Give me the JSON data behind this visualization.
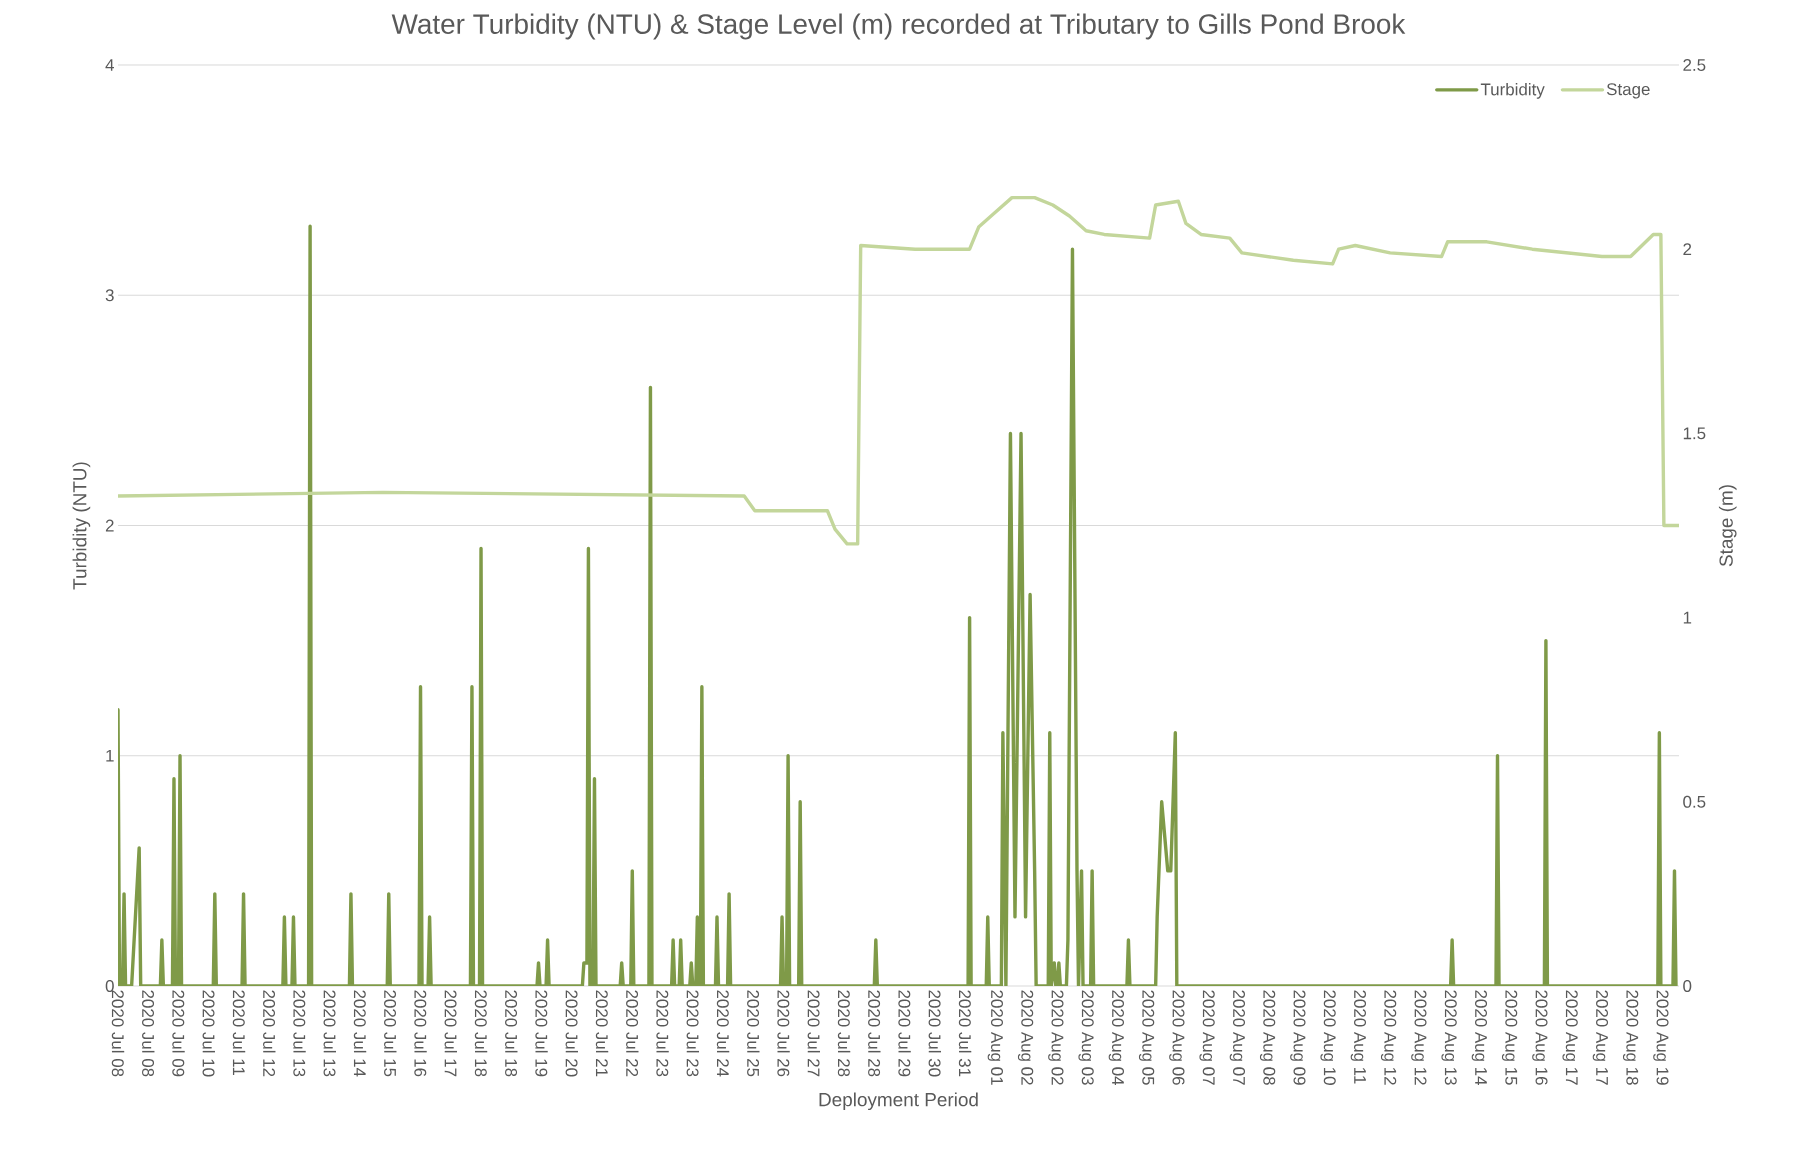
{
  "chart_data": {
    "type": "line",
    "title": "Water Turbidity (NTU) & Stage Level (m) recorded at Tributary to Gills Pond Brook",
    "xlabel": "Deployment Period",
    "ylabel": "Turbidity (NTU)",
    "y2label": "Stage (m)",
    "xlim": [
      "2020-07-08T00:00",
      "2020-08-20T00:00"
    ],
    "xticks": [
      {
        "value": "2020-07-08T00:00",
        "label": "2020 Jul 08"
      },
      {
        "value": "2020-07-08T20:00",
        "label": "2020 Jul 08"
      },
      {
        "value": "2020-07-09T16:00",
        "label": "2020 Jul 09"
      },
      {
        "value": "2020-07-10T12:00",
        "label": "2020 Jul 10"
      },
      {
        "value": "2020-07-11T08:00",
        "label": "2020 Jul 11"
      },
      {
        "value": "2020-07-12T04:00",
        "label": "2020 Jul 12"
      },
      {
        "value": "2020-07-13T00:00",
        "label": "2020 Jul 13"
      },
      {
        "value": "2020-07-13T20:00",
        "label": "2020 Jul 13"
      },
      {
        "value": "2020-07-14T16:00",
        "label": "2020 Jul 14"
      },
      {
        "value": "2020-07-15T12:00",
        "label": "2020 Jul 15"
      },
      {
        "value": "2020-07-16T08:00",
        "label": "2020 Jul 16"
      },
      {
        "value": "2020-07-17T04:00",
        "label": "2020 Jul 17"
      },
      {
        "value": "2020-07-18T00:00",
        "label": "2020 Jul 18"
      },
      {
        "value": "2020-07-18T20:00",
        "label": "2020 Jul 18"
      },
      {
        "value": "2020-07-19T16:00",
        "label": "2020 Jul 19"
      },
      {
        "value": "2020-07-20T12:00",
        "label": "2020 Jul 20"
      },
      {
        "value": "2020-07-21T08:00",
        "label": "2020 Jul 21"
      },
      {
        "value": "2020-07-22T04:00",
        "label": "2020 Jul 22"
      },
      {
        "value": "2020-07-23T00:00",
        "label": "2020 Jul 23"
      },
      {
        "value": "2020-07-23T20:00",
        "label": "2020 Jul 23"
      },
      {
        "value": "2020-07-24T16:00",
        "label": "2020 Jul 24"
      },
      {
        "value": "2020-07-25T12:00",
        "label": "2020 Jul 25"
      },
      {
        "value": "2020-07-26T08:00",
        "label": "2020 Jul 26"
      },
      {
        "value": "2020-07-27T04:00",
        "label": "2020 Jul 27"
      },
      {
        "value": "2020-07-28T00:00",
        "label": "2020 Jul 28"
      },
      {
        "value": "2020-07-28T20:00",
        "label": "2020 Jul 28"
      },
      {
        "value": "2020-07-29T16:00",
        "label": "2020 Jul 29"
      },
      {
        "value": "2020-07-30T12:00",
        "label": "2020 Jul 30"
      },
      {
        "value": "2020-07-31T08:00",
        "label": "2020 Jul 31"
      },
      {
        "value": "2020-08-01T04:00",
        "label": "2020 Aug 01"
      },
      {
        "value": "2020-08-02T00:00",
        "label": "2020 Aug 02"
      },
      {
        "value": "2020-08-02T20:00",
        "label": "2020 Aug 02"
      },
      {
        "value": "2020-08-03T16:00",
        "label": "2020 Aug 03"
      },
      {
        "value": "2020-08-04T12:00",
        "label": "2020 Aug 04"
      },
      {
        "value": "2020-08-05T08:00",
        "label": "2020 Aug 05"
      },
      {
        "value": "2020-08-06T04:00",
        "label": "2020 Aug 06"
      },
      {
        "value": "2020-08-07T00:00",
        "label": "2020 Aug 07"
      },
      {
        "value": "2020-08-07T20:00",
        "label": "2020 Aug 07"
      },
      {
        "value": "2020-08-08T16:00",
        "label": "2020 Aug 08"
      },
      {
        "value": "2020-08-09T12:00",
        "label": "2020 Aug 09"
      },
      {
        "value": "2020-08-10T08:00",
        "label": "2020 Aug 10"
      },
      {
        "value": "2020-08-11T04:00",
        "label": "2020 Aug 11"
      },
      {
        "value": "2020-08-12T00:00",
        "label": "2020 Aug 12"
      },
      {
        "value": "2020-08-12T20:00",
        "label": "2020 Aug 12"
      },
      {
        "value": "2020-08-13T16:00",
        "label": "2020 Aug 13"
      },
      {
        "value": "2020-08-14T12:00",
        "label": "2020 Aug 14"
      },
      {
        "value": "2020-08-15T08:00",
        "label": "2020 Aug 15"
      },
      {
        "value": "2020-08-16T04:00",
        "label": "2020 Aug 16"
      },
      {
        "value": "2020-08-17T00:00",
        "label": "2020 Aug 17"
      },
      {
        "value": "2020-08-17T20:00",
        "label": "2020 Aug 17"
      },
      {
        "value": "2020-08-18T16:00",
        "label": "2020 Aug 18"
      },
      {
        "value": "2020-08-19T12:00",
        "label": "2020 Aug 19"
      }
    ],
    "ylim": [
      0,
      4
    ],
    "yticks": [
      0,
      1,
      2,
      3,
      4
    ],
    "y2lim": [
      0,
      2.5
    ],
    "y2ticks": [
      0,
      0.5,
      1,
      1.5,
      2,
      2.5
    ],
    "grid": "y",
    "legend": "top right",
    "marker": "none",
    "line_style": "solid",
    "series": [
      {
        "name": "Turbidity",
        "color": "#7f9a48",
        "x": [
          "2020-07-08T00:00",
          "2020-07-08T01:00",
          "2020-07-08T03:00",
          "2020-07-08T04:00",
          "2020-07-08T05:00",
          "2020-07-08T09:00",
          "2020-07-08T14:00",
          "2020-07-08T15:00",
          "2020-07-09T04:00",
          "2020-07-09T05:00",
          "2020-07-09T06:00",
          "2020-07-09T12:00",
          "2020-07-09T13:00",
          "2020-07-09T14:00",
          "2020-07-09T16:00",
          "2020-07-09T17:00",
          "2020-07-09T18:00",
          "2020-07-10T15:00",
          "2020-07-10T16:00",
          "2020-07-10T17:00",
          "2020-07-11T10:00",
          "2020-07-11T11:00",
          "2020-07-11T12:00",
          "2020-07-12T13:00",
          "2020-07-12T14:00",
          "2020-07-12T15:00",
          "2020-07-12T19:00",
          "2020-07-12T20:00",
          "2020-07-12T21:00",
          "2020-07-13T06:00",
          "2020-07-13T07:00",
          "2020-07-13T08:00",
          "2020-07-14T09:00",
          "2020-07-14T10:00",
          "2020-07-14T11:00",
          "2020-07-15T10:00",
          "2020-07-15T11:00",
          "2020-07-15T12:00",
          "2020-07-16T07:00",
          "2020-07-16T08:00",
          "2020-07-16T09:00",
          "2020-07-16T13:00",
          "2020-07-16T14:00",
          "2020-07-16T15:00",
          "2020-07-17T17:00",
          "2020-07-17T18:00",
          "2020-07-17T19:00",
          "2020-07-17T23:00",
          "2020-07-18T00:00",
          "2020-07-18T01:00",
          "2020-07-19T13:00",
          "2020-07-19T14:00",
          "2020-07-19T15:00",
          "2020-07-19T19:00",
          "2020-07-19T20:00",
          "2020-07-19T21:00",
          "2020-07-20T19:00",
          "2020-07-20T20:00",
          "2020-07-20T22:00",
          "2020-07-20T23:00",
          "2020-07-21T00:00",
          "2020-07-21T02:00",
          "2020-07-21T03:00",
          "2020-07-21T04:00",
          "2020-07-21T20:00",
          "2020-07-21T21:00",
          "2020-07-21T22:00",
          "2020-07-22T03:00",
          "2020-07-22T04:00",
          "2020-07-22T05:00",
          "2020-07-22T15:00",
          "2020-07-22T16:00",
          "2020-07-22T17:00",
          "2020-07-23T06:00",
          "2020-07-23T07:00",
          "2020-07-23T08:00",
          "2020-07-23T11:00",
          "2020-07-23T12:00",
          "2020-07-23T13:00",
          "2020-07-23T18:00",
          "2020-07-23T19:00",
          "2020-07-23T20:00",
          "2020-07-23T22:00",
          "2020-07-23T23:00",
          "2020-07-24T00:00",
          "2020-07-24T01:00",
          "2020-07-24T02:00",
          "2020-07-24T03:00",
          "2020-07-24T11:00",
          "2020-07-24T12:00",
          "2020-07-24T13:00",
          "2020-07-24T19:00",
          "2020-07-24T20:00",
          "2020-07-24T21:00",
          "2020-07-26T06:00",
          "2020-07-26T07:00",
          "2020-07-26T08:00",
          "2020-07-26T10:00",
          "2020-07-26T11:00",
          "2020-07-26T12:00",
          "2020-07-26T18:00",
          "2020-07-26T19:00",
          "2020-07-26T20:00",
          "2020-07-28T20:00",
          "2020-07-28T21:00",
          "2020-07-28T22:00",
          "2020-07-31T10:00",
          "2020-07-31T11:00",
          "2020-07-31T12:00",
          "2020-07-31T22:00",
          "2020-07-31T23:00",
          "2020-08-01T00:00",
          "2020-08-01T08:00",
          "2020-08-01T09:00",
          "2020-08-01T11:00",
          "2020-08-01T14:00",
          "2020-08-01T17:00",
          "2020-08-01T21:00",
          "2020-08-02T00:00",
          "2020-08-02T03:00",
          "2020-08-02T06:00",
          "2020-08-02T07:00",
          "2020-08-02T15:00",
          "2020-08-02T16:00",
          "2020-08-02T17:00",
          "2020-08-02T19:00",
          "2020-08-02T20:00",
          "2020-08-02T21:00",
          "2020-08-02T22:00",
          "2020-08-02T23:00",
          "2020-08-03T03:00",
          "2020-08-03T04:00",
          "2020-08-03T07:00",
          "2020-08-03T10:00",
          "2020-08-03T11:00",
          "2020-08-03T13:00",
          "2020-08-03T14:00",
          "2020-08-03T19:00",
          "2020-08-03T20:00",
          "2020-08-03T21:00",
          "2020-08-04T19:00",
          "2020-08-04T20:00",
          "2020-08-04T21:00",
          "2020-08-05T14:00",
          "2020-08-05T15:00",
          "2020-08-05T18:00",
          "2020-08-05T22:00",
          "2020-08-06T00:00",
          "2020-08-06T03:00",
          "2020-08-06T04:00",
          "2020-08-13T17:00",
          "2020-08-13T18:00",
          "2020-08-13T19:00",
          "2020-08-14T23:00",
          "2020-08-15T00:00",
          "2020-08-15T01:00",
          "2020-08-16T07:00",
          "2020-08-16T08:00",
          "2020-08-16T09:00",
          "2020-08-19T10:00",
          "2020-08-19T11:00",
          "2020-08-19T12:00",
          "2020-08-19T20:00",
          "2020-08-19T21:00",
          "2020-08-19T22:00"
        ],
        "values": [
          1.2,
          0,
          0,
          0.4,
          0,
          0,
          0.6,
          0,
          0,
          0.2,
          0,
          0,
          0.9,
          0,
          0,
          1.0,
          0,
          0,
          0.4,
          0,
          0,
          0.4,
          0,
          0,
          0.3,
          0,
          0,
          0.3,
          0,
          0,
          3.3,
          0,
          0,
          0.4,
          0,
          0,
          0.4,
          0,
          0,
          1.3,
          0,
          0,
          0.3,
          0,
          0,
          1.3,
          0,
          0,
          1.9,
          0,
          0,
          0.1,
          0,
          0,
          0.2,
          0,
          0,
          0.1,
          0.1,
          1.9,
          0,
          0,
          0.9,
          0,
          0,
          0.1,
          0,
          0,
          0.5,
          0,
          0,
          2.6,
          0,
          0,
          0.2,
          0,
          0,
          0.2,
          0,
          0,
          0.1,
          0,
          0,
          0.3,
          0,
          0,
          1.3,
          0,
          0,
          0.3,
          0,
          0,
          0.4,
          0,
          0,
          0.3,
          0,
          0,
          1.0,
          0,
          0,
          0.8,
          0,
          0,
          0.2,
          0,
          0,
          1.6,
          0,
          0,
          0.3,
          0,
          0,
          1.1,
          0,
          2.4,
          0.3,
          2.4,
          0.3,
          1.7,
          0.5,
          0,
          0,
          1.1,
          0,
          0.1,
          0,
          0,
          0.1,
          0,
          0,
          0.2,
          3.2,
          0.5,
          0,
          0.5,
          0,
          0,
          0.5,
          0,
          0,
          0.2,
          0,
          0,
          0.3,
          0.8,
          0.5,
          0.5,
          1.1,
          0,
          0,
          0.2,
          0,
          0,
          1.0,
          0,
          0,
          1.5,
          0,
          0,
          1.1,
          0,
          0,
          0.5,
          0
        ]
      },
      {
        "name": "Stage",
        "color": "#c3d69b",
        "axis": "y2",
        "x": [
          "2020-07-08T00:00",
          "2020-07-15T07:00",
          "2020-07-25T06:00",
          "2020-07-25T13:00",
          "2020-07-27T13:00",
          "2020-07-27T18:00",
          "2020-07-28T02:00",
          "2020-07-28T09:00",
          "2020-07-28T11:00",
          "2020-07-29T23:00",
          "2020-07-31T11:00",
          "2020-07-31T17:00",
          "2020-08-01T04:00",
          "2020-08-01T15:00",
          "2020-08-02T06:00",
          "2020-08-02T18:00",
          "2020-08-03T05:00",
          "2020-08-03T16:00",
          "2020-08-04T04:00",
          "2020-08-05T10:00",
          "2020-08-05T14:00",
          "2020-08-06T05:00",
          "2020-08-06T10:00",
          "2020-08-06T20:00",
          "2020-08-07T15:00",
          "2020-08-07T23:00",
          "2020-08-09T09:00",
          "2020-08-10T11:00",
          "2020-08-10T15:00",
          "2020-08-11T02:00",
          "2020-08-12T01:00",
          "2020-08-13T11:00",
          "2020-08-13T15:00",
          "2020-08-14T17:00",
          "2020-08-15T23:00",
          "2020-08-17T21:00",
          "2020-08-18T16:00",
          "2020-08-19T07:00",
          "2020-08-19T12:00",
          "2020-08-19T14:00",
          "2020-08-20T00:00"
        ],
        "values": [
          1.33,
          1.34,
          1.33,
          1.29,
          1.29,
          1.24,
          1.2,
          1.2,
          2.01,
          2.0,
          2.0,
          2.06,
          2.1,
          2.14,
          2.14,
          2.12,
          2.09,
          2.05,
          2.04,
          2.03,
          2.12,
          2.13,
          2.07,
          2.04,
          2.03,
          1.99,
          1.97,
          1.96,
          2.0,
          2.01,
          1.99,
          1.98,
          2.02,
          2.02,
          2.0,
          1.98,
          1.98,
          2.04,
          2.04,
          1.25,
          1.25
        ]
      }
    ]
  }
}
